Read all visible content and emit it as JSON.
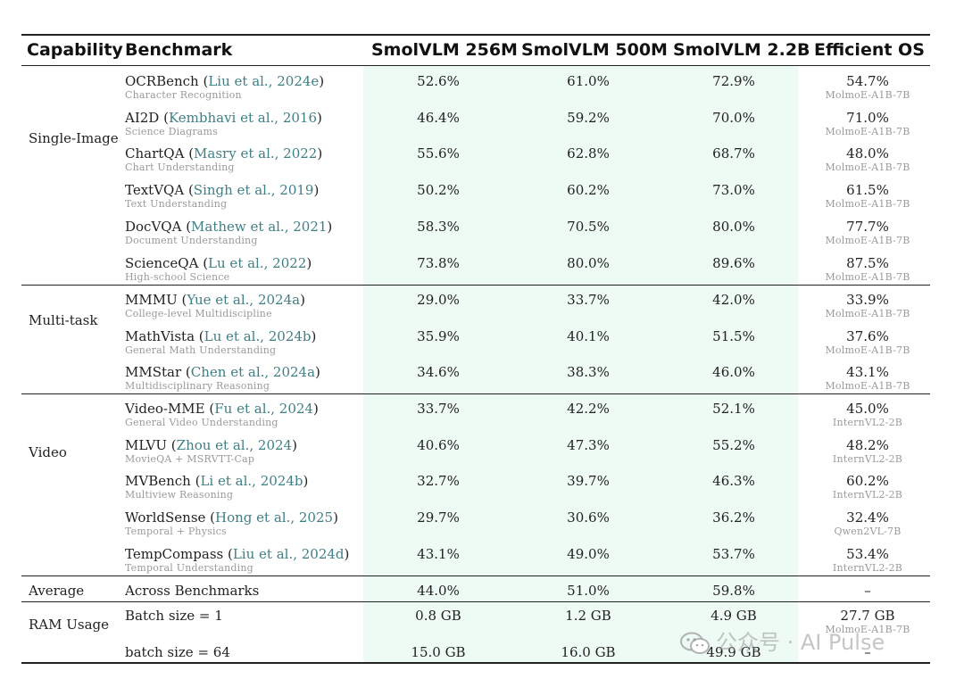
{
  "headers": [
    "Capability",
    "Benchmark",
    "SmolVLM 256M",
    "SmolVLM 500M",
    "SmolVLM 2.2B",
    "Efficient OS"
  ],
  "groups": [
    {
      "capability": "Single-Image",
      "rows": [
        {
          "name": "OCRBench",
          "cite": "Liu et al., 2024e",
          "sub": "Character Recognition",
          "v": [
            "52.6%",
            "61.0%",
            "72.9%"
          ],
          "os": "54.7%",
          "os_model": "MolmoE-A1B-7B"
        },
        {
          "name": "AI2D",
          "cite": "Kembhavi et al., 2016",
          "sub": "Science Diagrams",
          "v": [
            "46.4%",
            "59.2%",
            "70.0%"
          ],
          "os": "71.0%",
          "os_model": "MolmoE-A1B-7B"
        },
        {
          "name": "ChartQA",
          "cite": "Masry et al., 2022",
          "sub": "Chart Understanding",
          "v": [
            "55.6%",
            "62.8%",
            "68.7%"
          ],
          "os": "48.0%",
          "os_model": "MolmoE-A1B-7B"
        },
        {
          "name": "TextVQA",
          "cite": "Singh et al., 2019",
          "sub": "Text Understanding",
          "v": [
            "50.2%",
            "60.2%",
            "73.0%"
          ],
          "os": "61.5%",
          "os_model": "MolmoE-A1B-7B"
        },
        {
          "name": "DocVQA",
          "cite": "Mathew et al., 2021",
          "sub": "Document Understanding",
          "v": [
            "58.3%",
            "70.5%",
            "80.0%"
          ],
          "os": "77.7%",
          "os_model": "MolmoE-A1B-7B"
        },
        {
          "name": "ScienceQA",
          "cite": "Lu et al., 2022",
          "sub": "High-school Science",
          "v": [
            "73.8%",
            "80.0%",
            "89.6%"
          ],
          "os": "87.5%",
          "os_model": "MolmoE-A1B-7B"
        }
      ]
    },
    {
      "capability": "Multi-task",
      "rows": [
        {
          "name": "MMMU",
          "cite": "Yue et al., 2024a",
          "sub": "College-level Multidiscipline",
          "v": [
            "29.0%",
            "33.7%",
            "42.0%"
          ],
          "os": "33.9%",
          "os_model": "MolmoE-A1B-7B"
        },
        {
          "name": "MathVista",
          "cite": "Lu et al., 2024b",
          "sub": "General Math Understanding",
          "v": [
            "35.9%",
            "40.1%",
            "51.5%"
          ],
          "os": "37.6%",
          "os_model": "MolmoE-A1B-7B"
        },
        {
          "name": "MMStar",
          "cite": "Chen et al., 2024a",
          "sub": "Multidisciplinary Reasoning",
          "v": [
            "34.6%",
            "38.3%",
            "46.0%"
          ],
          "os": "43.1%",
          "os_model": "MolmoE-A1B-7B"
        }
      ]
    },
    {
      "capability": "Video",
      "rows": [
        {
          "name": "Video-MME",
          "cite": "Fu et al., 2024",
          "sub": "General Video Understanding",
          "v": [
            "33.7%",
            "42.2%",
            "52.1%"
          ],
          "os": "45.0%",
          "os_model": "InternVL2-2B"
        },
        {
          "name": "MLVU",
          "cite": "Zhou et al., 2024",
          "sub": "MovieQA + MSRVTT-Cap",
          "v": [
            "40.6%",
            "47.3%",
            "55.2%"
          ],
          "os": "48.2%",
          "os_model": "InternVL2-2B"
        },
        {
          "name": "MVBench",
          "cite": "Li et al., 2024b",
          "sub": "Multiview Reasoning",
          "v": [
            "32.7%",
            "39.7%",
            "46.3%"
          ],
          "os": "60.2%",
          "os_model": "InternVL2-2B"
        },
        {
          "name": "WorldSense",
          "cite": "Hong et al., 2025",
          "sub": "Temporal + Physics",
          "v": [
            "29.7%",
            "30.6%",
            "36.2%"
          ],
          "os": "32.4%",
          "os_model": "Qwen2VL-7B"
        },
        {
          "name": "TempCompass",
          "cite": "Liu et al., 2024d",
          "sub": "Temporal Understanding",
          "v": [
            "43.1%",
            "49.0%",
            "53.7%"
          ],
          "os": "53.4%",
          "os_model": "InternVL2-2B"
        }
      ]
    }
  ],
  "average": {
    "label": "Average",
    "bench": "Across Benchmarks",
    "v": [
      "44.0%",
      "51.0%",
      "59.8%"
    ],
    "os": "–"
  },
  "ram": {
    "label": "RAM Usage",
    "rows": [
      {
        "bench": "Batch size = 1",
        "v": [
          "0.8 GB",
          "1.2 GB",
          "4.9 GB"
        ],
        "os": "27.7 GB",
        "os_model": "MolmoE-A1B-7B"
      },
      {
        "bench": "batch size = 64",
        "v": [
          "15.0 GB",
          "16.0 GB",
          "49.9 GB"
        ],
        "os": "–"
      }
    ]
  },
  "watermark": "公众号 · AI Pulse",
  "colors": {
    "citation": "#3f7f86",
    "highlight": "#eefaf4",
    "subtext": "#9a9a9a"
  }
}
